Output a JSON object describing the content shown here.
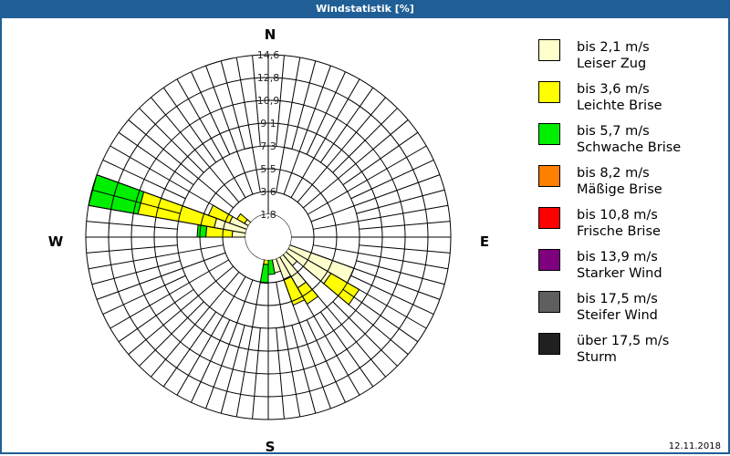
{
  "window": {
    "title": "Windstatistik [%]",
    "date": "12.11.2018"
  },
  "compass": {
    "N": "N",
    "E": "E",
    "S": "S",
    "W": "W"
  },
  "chart_data": {
    "type": "wind-rose",
    "title": "Windstatistik [%]",
    "unit": "%",
    "ring_labels": [
      "1,8",
      "3,6",
      "5,5",
      "7,3",
      "9,1",
      "10,9",
      "12,8",
      "14,6"
    ],
    "rmax": 14.6,
    "sector_width_deg": 10,
    "categories": [
      "bis 2,1 m/s",
      "bis 3,6 m/s",
      "bis 5,7 m/s",
      "bis 8,2 m/s",
      "bis 10,8 m/s",
      "bis 13,9 m/s",
      "bis 17,5 m/s",
      "über 17,5 m/s"
    ],
    "sectors": [
      {
        "dir": 105,
        "values": [
          1.8,
          0,
          0
        ]
      },
      {
        "dir": 115,
        "values": [
          7.3,
          0,
          0
        ]
      },
      {
        "dir": 125,
        "values": [
          5.8,
          2.6,
          0
        ]
      },
      {
        "dir": 135,
        "values": [
          3.0,
          0,
          0
        ]
      },
      {
        "dir": 145,
        "values": [
          4.7,
          1.5,
          0
        ]
      },
      {
        "dir": 155,
        "values": [
          3.6,
          2.2,
          0
        ]
      },
      {
        "dir": 165,
        "values": [
          2.9,
          0,
          0
        ]
      },
      {
        "dir": 175,
        "values": [
          0.5,
          1.3,
          1.2
        ]
      },
      {
        "dir": 185,
        "values": [
          0.5,
          1.7,
          1.5
        ]
      },
      {
        "dir": 195,
        "values": [
          0.4,
          1.4,
          0
        ]
      },
      {
        "dir": 205,
        "values": [
          0.3,
          1.2,
          0
        ]
      },
      {
        "dir": 215,
        "values": [
          0.3,
          1.0,
          0
        ]
      },
      {
        "dir": 225,
        "values": [
          0.3,
          0.3,
          0
        ]
      },
      {
        "dir": 275,
        "values": [
          2.9,
          2.1,
          0.7
        ]
      },
      {
        "dir": 285,
        "values": [
          4.4,
          6.2,
          4.0
        ]
      },
      {
        "dir": 295,
        "values": [
          3.3,
          1.8,
          0
        ]
      },
      {
        "dir": 305,
        "values": [
          2.2,
          0.7,
          0
        ]
      },
      {
        "dir": 315,
        "values": [
          1.8,
          0,
          0
        ]
      },
      {
        "dir": 325,
        "values": [
          1.0,
          0,
          0
        ]
      },
      {
        "dir": 85,
        "values": [
          0.8,
          0,
          0
        ]
      },
      {
        "dir": 95,
        "values": [
          1.2,
          0,
          0
        ]
      }
    ]
  },
  "legend": {
    "items": [
      {
        "line1": "bis 2,1 m/s",
        "line2": "Leiser Zug",
        "color": "#ffffcc"
      },
      {
        "line1": "bis 3,6 m/s",
        "line2": "Leichte Brise",
        "color": "#ffff00"
      },
      {
        "line1": "bis 5,7 m/s",
        "line2": "Schwache Brise",
        "color": "#00ee00"
      },
      {
        "line1": "bis 8,2 m/s",
        "line2": "Mäßige Brise",
        "color": "#ff7f00"
      },
      {
        "line1": "bis 10,8 m/s",
        "line2": "Frische Brise",
        "color": "#ff0000"
      },
      {
        "line1": "bis 13,9 m/s",
        "line2": "Starker Wind",
        "color": "#7f007f"
      },
      {
        "line1": "bis 17,5 m/s",
        "line2": "Steifer Wind",
        "color": "#5f5f5f"
      },
      {
        "line1": "über 17,5 m/s",
        "line2": "Sturm",
        "color": "#202020"
      }
    ]
  }
}
